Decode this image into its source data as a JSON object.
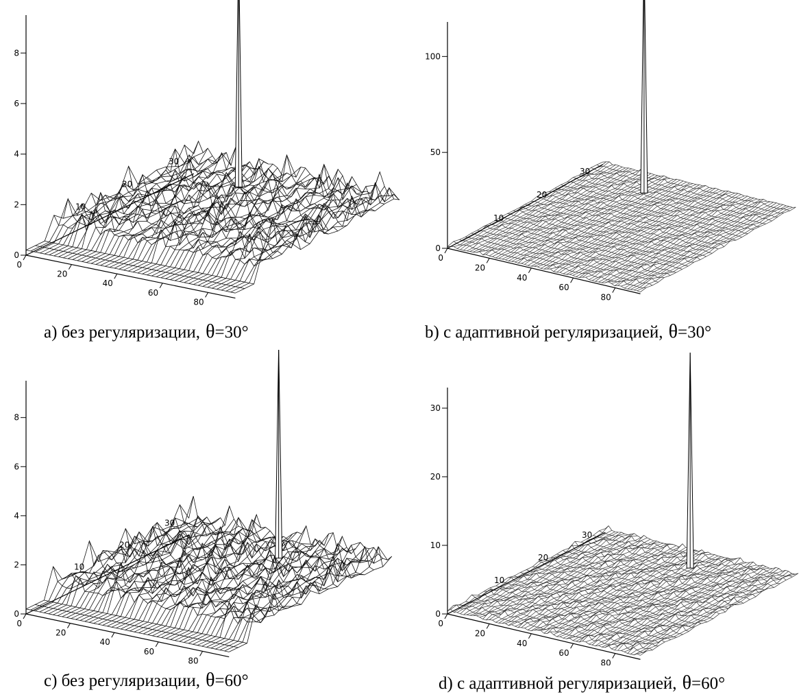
{
  "chart_data": [
    {
      "type": "surface",
      "caption_text": "a) без регуляризации,",
      "theta_symbol": "θ",
      "theta_value": "=30°",
      "z_ticks": [
        0,
        2,
        4,
        6,
        8
      ],
      "y_ticks": [
        10,
        20,
        30
      ],
      "x_ticks": [
        0,
        20,
        40,
        60,
        80
      ],
      "zlim": [
        0,
        9.5
      ],
      "peak": {
        "x": 32,
        "y": 30,
        "z": 10
      },
      "noise_amplitude": 1.8
    },
    {
      "type": "surface",
      "caption_text": "b) с адаптивной регуляризацией,",
      "theta_symbol": "θ",
      "theta_value": "=30°",
      "z_ticks": [
        0,
        50,
        100
      ],
      "y_ticks": [
        10,
        20,
        30
      ],
      "x_ticks": [
        0,
        20,
        40,
        60,
        80
      ],
      "zlim": [
        0,
        118
      ],
      "peak": {
        "x": 32,
        "y": 30,
        "z": 125
      },
      "noise_amplitude": 2.5
    },
    {
      "type": "surface",
      "caption_text": "c) без регуляризации,",
      "theta_symbol": "θ",
      "theta_value": "=60°",
      "z_ticks": [
        0,
        2,
        4,
        6,
        8
      ],
      "y_ticks": [
        10,
        20,
        30
      ],
      "x_ticks": [
        0,
        20,
        40,
        60,
        80
      ],
      "zlim": [
        0,
        9.5
      ],
      "peak": {
        "x": 53,
        "y": 30,
        "z": 9.2
      },
      "noise_amplitude": 1.8
    },
    {
      "type": "surface",
      "caption_text": "d) с адаптивной регуляризацией,",
      "theta_symbol": "θ",
      "theta_value": "=60°",
      "z_ticks": [
        0,
        10,
        20,
        30
      ],
      "y_ticks": [
        10,
        20,
        30
      ],
      "x_ticks": [
        0,
        20,
        40,
        60,
        80
      ],
      "zlim": [
        0,
        33
      ],
      "peak": {
        "x": 53,
        "y": 30,
        "z": 32
      },
      "noise_amplitude": 1.2
    }
  ]
}
